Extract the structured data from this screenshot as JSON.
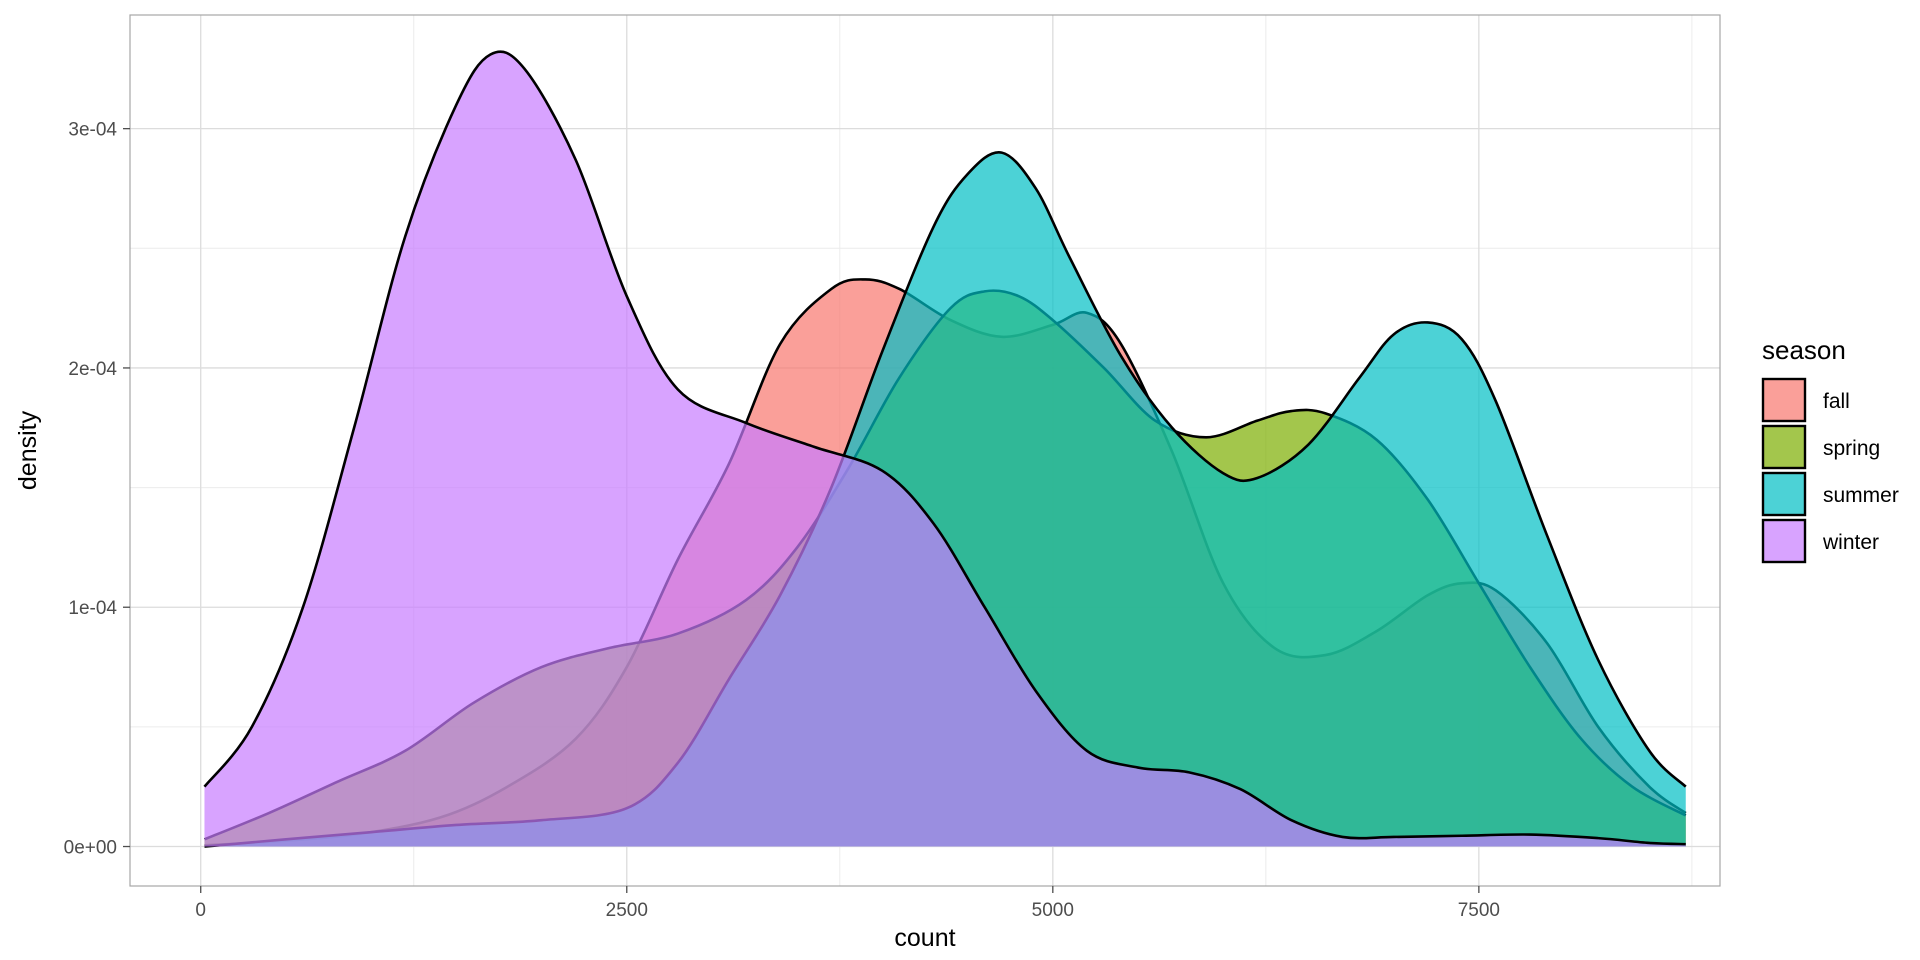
{
  "chart_data": {
    "type": "area",
    "subtype": "density",
    "title": "",
    "xlabel": "count",
    "ylabel": "density",
    "xlim": [
      -415,
      8915
    ],
    "ylim": [
      -1.65e-05,
      0.0003475
    ],
    "x_ticks": [
      0,
      2500,
      5000,
      7500
    ],
    "x_tick_labels": [
      "0",
      "2500",
      "5000",
      "7500"
    ],
    "y_ticks": [
      0,
      0.0001,
      0.0002,
      0.0003
    ],
    "y_tick_labels": [
      "0e+00",
      "1e-04",
      "2e-04",
      "3e-04"
    ],
    "grid": true,
    "legend": {
      "title": "season",
      "position": "right"
    },
    "fill_opacity": 0.7,
    "series": [
      {
        "name": "fall",
        "color": "#F8766D",
        "points": [
          [
            22,
            5e-07
          ],
          [
            400,
            2e-06
          ],
          [
            900,
            5e-06
          ],
          [
            1400,
            1.2e-05
          ],
          [
            1800,
            2.5e-05
          ],
          [
            2200,
            4.5e-05
          ],
          [
            2500,
            7.5e-05
          ],
          [
            2800,
            0.00012
          ],
          [
            3100,
            0.00016
          ],
          [
            3400,
            0.00021
          ],
          [
            3700,
            0.000233
          ],
          [
            3900,
            0.000237
          ],
          [
            4100,
            0.000233
          ],
          [
            4400,
            0.00022
          ],
          [
            4700,
            0.000213
          ],
          [
            5000,
            0.000218
          ],
          [
            5200,
            0.000223
          ],
          [
            5400,
            0.00021
          ],
          [
            5700,
            0.000165
          ],
          [
            6000,
            0.00011
          ],
          [
            6300,
            8.3e-05
          ],
          [
            6600,
            8e-05
          ],
          [
            6900,
            9e-05
          ],
          [
            7200,
            0.000105
          ],
          [
            7400,
            0.00011
          ],
          [
            7600,
            0.000107
          ],
          [
            7900,
            8.5e-05
          ],
          [
            8200,
            5e-05
          ],
          [
            8500,
            2.5e-05
          ],
          [
            8714,
            1.4e-05
          ]
        ]
      },
      {
        "name": "spring",
        "color": "#7CAE00",
        "points": [
          [
            22,
            3e-06
          ],
          [
            400,
            1.4e-05
          ],
          [
            800,
            2.7e-05
          ],
          [
            1200,
            4e-05
          ],
          [
            1600,
            6e-05
          ],
          [
            2000,
            7.5e-05
          ],
          [
            2400,
            8.3e-05
          ],
          [
            2800,
            8.9e-05
          ],
          [
            3200,
            0.000103
          ],
          [
            3500,
            0.000125
          ],
          [
            3800,
            0.000158
          ],
          [
            4100,
            0.000196
          ],
          [
            4400,
            0.000225
          ],
          [
            4600,
            0.000232
          ],
          [
            4800,
            0.00023
          ],
          [
            5000,
            0.00022
          ],
          [
            5300,
            0.0002
          ],
          [
            5600,
            0.000178
          ],
          [
            5900,
            0.000171
          ],
          [
            6200,
            0.000178
          ],
          [
            6400,
            0.000182
          ],
          [
            6600,
            0.000181
          ],
          [
            6900,
            0.00017
          ],
          [
            7200,
            0.000145
          ],
          [
            7500,
            0.00011
          ],
          [
            7800,
            7.5e-05
          ],
          [
            8100,
            4.5e-05
          ],
          [
            8400,
            2.5e-05
          ],
          [
            8714,
            1.3e-05
          ]
        ]
      },
      {
        "name": "summer",
        "color": "#00BFC4",
        "points": [
          [
            22,
            0
          ],
          [
            500,
            3e-06
          ],
          [
            1000,
            6e-06
          ],
          [
            1500,
            9e-06
          ],
          [
            2000,
            1.1e-05
          ],
          [
            2500,
            1.6e-05
          ],
          [
            2800,
            3.5e-05
          ],
          [
            3100,
            7e-05
          ],
          [
            3400,
            0.000105
          ],
          [
            3700,
            0.00015
          ],
          [
            4000,
            0.000207
          ],
          [
            4300,
            0.000259
          ],
          [
            4500,
            0.000281
          ],
          [
            4700,
            0.00029
          ],
          [
            4900,
            0.000275
          ],
          [
            5100,
            0.000246
          ],
          [
            5400,
            0.000205
          ],
          [
            5700,
            0.000175
          ],
          [
            6000,
            0.000156
          ],
          [
            6200,
            0.000154
          ],
          [
            6500,
            0.000168
          ],
          [
            6800,
            0.000196
          ],
          [
            7000,
            0.000214
          ],
          [
            7200,
            0.000219
          ],
          [
            7400,
            0.000212
          ],
          [
            7600,
            0.000186
          ],
          [
            7900,
            0.00013
          ],
          [
            8200,
            7.8e-05
          ],
          [
            8500,
            4e-05
          ],
          [
            8714,
            2.5e-05
          ]
        ]
      },
      {
        "name": "winter",
        "color": "#C77CFF",
        "points": [
          [
            22,
            2.5e-05
          ],
          [
            300,
            5e-05
          ],
          [
            600,
            0.0001
          ],
          [
            900,
            0.000175
          ],
          [
            1200,
            0.000255
          ],
          [
            1500,
            0.00031
          ],
          [
            1700,
            0.000331
          ],
          [
            1900,
            0.000325
          ],
          [
            2200,
            0.000287
          ],
          [
            2500,
            0.00023
          ],
          [
            2800,
            0.000191
          ],
          [
            3200,
            0.000177
          ],
          [
            3600,
            0.000167
          ],
          [
            4000,
            0.000157
          ],
          [
            4300,
            0.000135
          ],
          [
            4600,
            0.0001
          ],
          [
            4900,
            6.5e-05
          ],
          [
            5200,
            4e-05
          ],
          [
            5500,
            3.3e-05
          ],
          [
            5800,
            3.1e-05
          ],
          [
            6100,
            2.4e-05
          ],
          [
            6400,
            1.1e-05
          ],
          [
            6700,
            4e-06
          ],
          [
            7000,
            4e-06
          ],
          [
            7400,
            4.5e-06
          ],
          [
            7800,
            5e-06
          ],
          [
            8200,
            3.5e-06
          ],
          [
            8500,
            1.5e-06
          ],
          [
            8714,
            1e-06
          ]
        ]
      }
    ]
  }
}
